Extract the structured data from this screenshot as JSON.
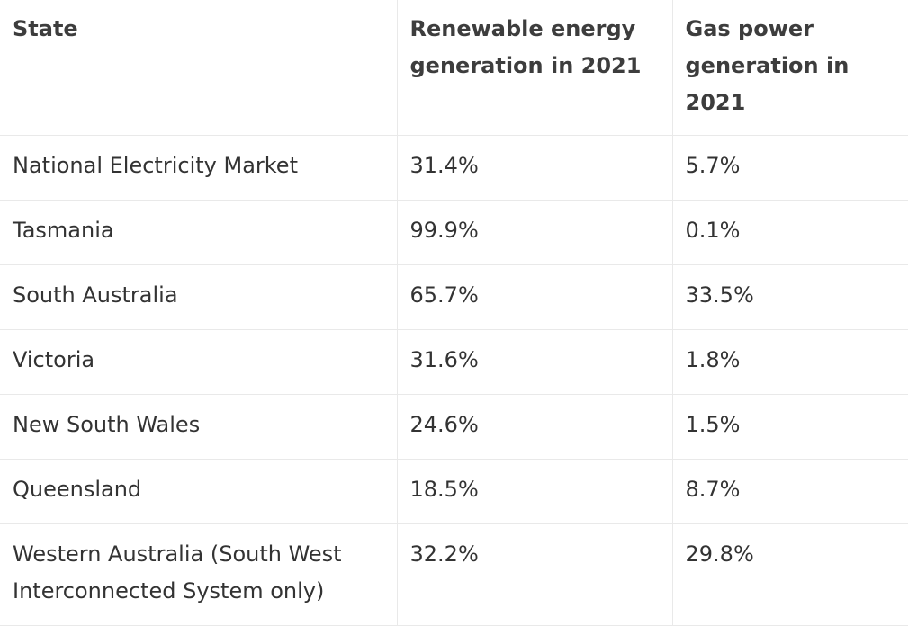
{
  "table": {
    "headers": [
      "State",
      "Renewable energy generation in 2021",
      "Gas power generation in 2021"
    ],
    "rows": [
      [
        "National Electricity Market",
        "31.4%",
        "5.7%"
      ],
      [
        "Tasmania",
        "99.9%",
        "0.1%"
      ],
      [
        "South Australia",
        "65.7%",
        "33.5%"
      ],
      [
        "Victoria",
        "31.6%",
        "1.8%"
      ],
      [
        "New South Wales",
        "24.6%",
        "1.5%"
      ],
      [
        "Queensland",
        "18.5%",
        "8.7%"
      ],
      [
        "Western Australia (South West Interconnected System only)",
        "32.2%",
        "29.8%"
      ]
    ]
  }
}
